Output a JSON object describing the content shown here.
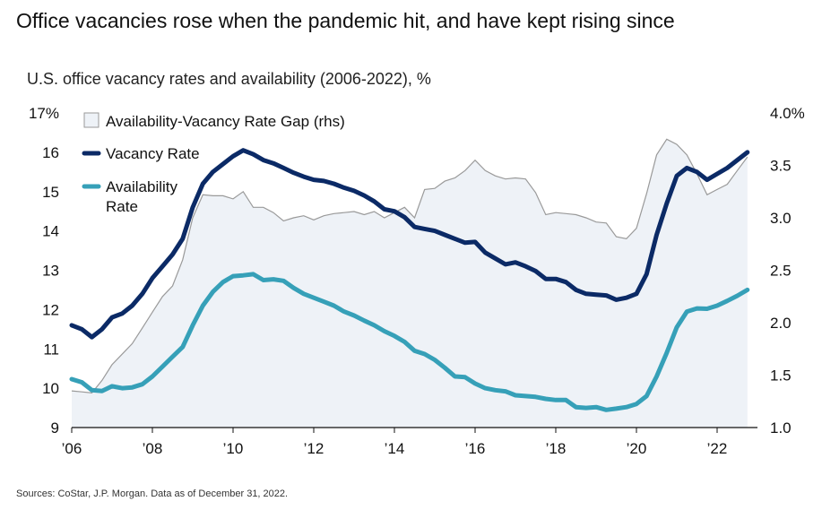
{
  "title": "Office vacancies rose when the pandemic hit, and have kept rising since",
  "subtitle": "U.S. office vacancy rates and availability (2006-2022), %",
  "source": "Sources: CoStar, J.P. Morgan. Data as of December 31, 2022.",
  "colors": {
    "vacancy": "#0b2a66",
    "availability": "#36a0b8",
    "gap_fill": "#eef2f7",
    "gap_line": "#9a9a9a",
    "axis": "#111111"
  },
  "chart_data": {
    "type": "line",
    "left_axis": {
      "min": 9,
      "max": 17,
      "ticks": [
        9,
        10,
        11,
        12,
        13,
        14,
        15,
        16,
        17
      ],
      "tick_labels": [
        "9",
        "10",
        "11",
        "12",
        "13",
        "14",
        "15",
        "16",
        "17%"
      ]
    },
    "right_axis": {
      "min": 1.0,
      "max": 4.0,
      "ticks": [
        1.0,
        1.5,
        2.0,
        2.5,
        3.0,
        3.5,
        4.0
      ],
      "tick_labels": [
        "1.0",
        "1.5",
        "2.0",
        "2.5",
        "3.0",
        "3.5",
        "4.0%"
      ]
    },
    "x_axis": {
      "min": 2006,
      "max": 2023.0,
      "ticks": [
        2006,
        2008,
        2010,
        2012,
        2014,
        2016,
        2018,
        2020,
        2022
      ],
      "tick_labels": [
        "’06",
        "’08",
        "’10",
        "’12",
        "’14",
        "’16",
        "’18",
        "’20",
        "’22"
      ]
    },
    "legend": [
      {
        "key": "gap",
        "label": "Availability-Vacancy Rate Gap (rhs)"
      },
      {
        "key": "vacancy",
        "label": "Vacancy Rate"
      },
      {
        "key": "availability",
        "label": "Availability Rate",
        "label_lines": [
          "Availability",
          "Rate"
        ]
      }
    ],
    "x": [
      2006.0,
      2006.25,
      2006.5,
      2006.75,
      2007.0,
      2007.25,
      2007.5,
      2007.75,
      2008.0,
      2008.25,
      2008.5,
      2008.75,
      2009.0,
      2009.25,
      2009.5,
      2009.75,
      2010.0,
      2010.25,
      2010.5,
      2010.75,
      2011.0,
      2011.25,
      2011.5,
      2011.75,
      2012.0,
      2012.25,
      2012.5,
      2012.75,
      2013.0,
      2013.25,
      2013.5,
      2013.75,
      2014.0,
      2014.25,
      2014.5,
      2014.75,
      2015.0,
      2015.25,
      2015.5,
      2015.75,
      2016.0,
      2016.25,
      2016.5,
      2016.75,
      2017.0,
      2017.25,
      2017.5,
      2017.75,
      2018.0,
      2018.25,
      2018.5,
      2018.75,
      2019.0,
      2019.25,
      2019.5,
      2019.75,
      2020.0,
      2020.25,
      2020.5,
      2020.75,
      2021.0,
      2021.25,
      2021.5,
      2021.75,
      2022.0,
      2022.25,
      2022.5,
      2022.75
    ],
    "series": [
      {
        "name": "Vacancy Rate",
        "axis": "left",
        "values": [
          11.6,
          11.5,
          11.3,
          11.5,
          11.8,
          11.9,
          12.1,
          12.4,
          12.8,
          13.1,
          13.4,
          13.8,
          14.6,
          15.2,
          15.5,
          15.7,
          15.9,
          16.05,
          15.95,
          15.8,
          15.72,
          15.6,
          15.48,
          15.38,
          15.3,
          15.27,
          15.2,
          15.1,
          15.02,
          14.9,
          14.75,
          14.55,
          14.5,
          14.35,
          14.1,
          14.05,
          14.0,
          13.9,
          13.8,
          13.7,
          13.72,
          13.45,
          13.3,
          13.15,
          13.2,
          13.1,
          12.98,
          12.78,
          12.78,
          12.7,
          12.5,
          12.4,
          12.38,
          12.36,
          12.25,
          12.3,
          12.4,
          12.9,
          13.9,
          14.7,
          15.4,
          15.6,
          15.5,
          15.3,
          15.45,
          15.6,
          15.8,
          16.0
        ]
      },
      {
        "name": "Availability Rate",
        "axis": "left",
        "values": [
          10.23,
          10.15,
          9.95,
          9.93,
          10.05,
          10.0,
          10.02,
          10.1,
          10.3,
          10.55,
          10.8,
          11.05,
          11.6,
          12.1,
          12.45,
          12.7,
          12.85,
          12.87,
          12.9,
          12.75,
          12.77,
          12.73,
          12.55,
          12.4,
          12.3,
          12.2,
          12.1,
          11.95,
          11.85,
          11.72,
          11.6,
          11.45,
          11.33,
          11.18,
          10.95,
          10.87,
          10.72,
          10.52,
          10.3,
          10.28,
          10.12,
          10.0,
          9.95,
          9.92,
          9.82,
          9.8,
          9.78,
          9.73,
          9.7,
          9.7,
          9.52,
          9.5,
          9.52,
          9.45,
          9.48,
          9.52,
          9.6,
          9.8,
          10.3,
          10.9,
          11.55,
          11.95,
          12.03,
          12.02,
          12.1,
          12.22,
          12.35,
          12.5
        ]
      },
      {
        "name": "Availability-Vacancy Rate Gap (rhs)",
        "axis": "right",
        "values": [
          1.35,
          1.34,
          1.33,
          1.45,
          1.6,
          1.7,
          1.8,
          1.95,
          2.1,
          2.25,
          2.35,
          2.6,
          3.0,
          3.22,
          3.21,
          3.21,
          3.18,
          3.25,
          3.1,
          3.1,
          3.05,
          2.97,
          3.0,
          3.02,
          2.98,
          3.02,
          3.04,
          3.05,
          3.06,
          3.03,
          3.06,
          3.0,
          3.05,
          3.1,
          3.0,
          3.27,
          3.28,
          3.35,
          3.38,
          3.45,
          3.55,
          3.45,
          3.4,
          3.37,
          3.38,
          3.37,
          3.24,
          3.03,
          3.05,
          3.04,
          3.03,
          3.0,
          2.96,
          2.95,
          2.82,
          2.8,
          2.9,
          3.23,
          3.6,
          3.75,
          3.7,
          3.6,
          3.42,
          3.22,
          3.27,
          3.32,
          3.45,
          3.58
        ]
      }
    ]
  }
}
